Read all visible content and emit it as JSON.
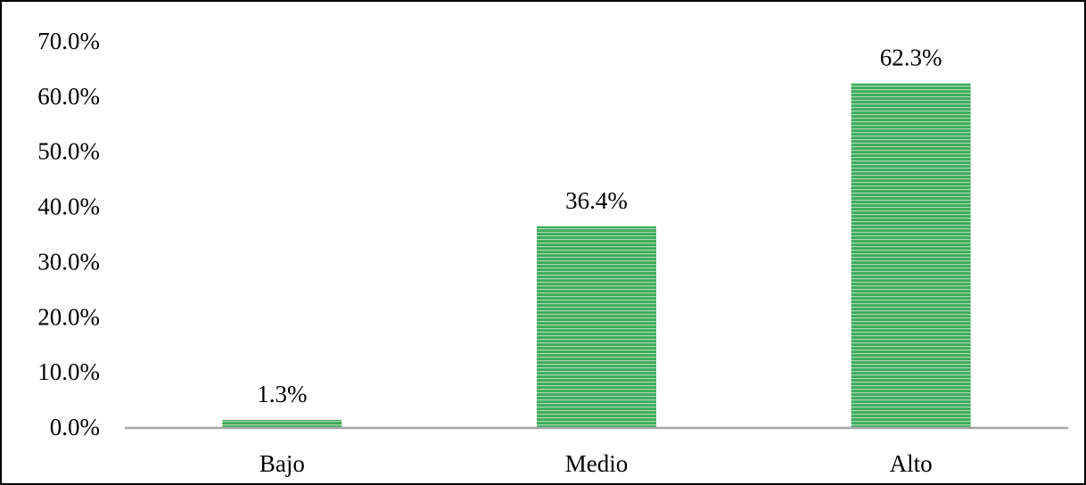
{
  "chart_data": {
    "type": "bar",
    "categories": [
      "Bajo",
      "Medio",
      "Alto"
    ],
    "values": [
      1.3,
      36.4,
      62.3
    ],
    "value_labels": [
      "1.3%",
      "36.4%",
      "62.3%"
    ],
    "title": "",
    "xlabel": "",
    "ylabel": "",
    "ylim": [
      0,
      70
    ],
    "yticks": [
      0,
      10,
      20,
      30,
      40,
      50,
      60,
      70
    ],
    "ytick_labels": [
      "0.0%",
      "10.0%",
      "20.0%",
      "30.0%",
      "40.0%",
      "50.0%",
      "60.0%",
      "70.0%"
    ],
    "grid": false,
    "legend": "none",
    "bar_color": "#3daa5a",
    "bar_stripe_color": "#ffffff",
    "axis_color": "#a6a6a6"
  }
}
